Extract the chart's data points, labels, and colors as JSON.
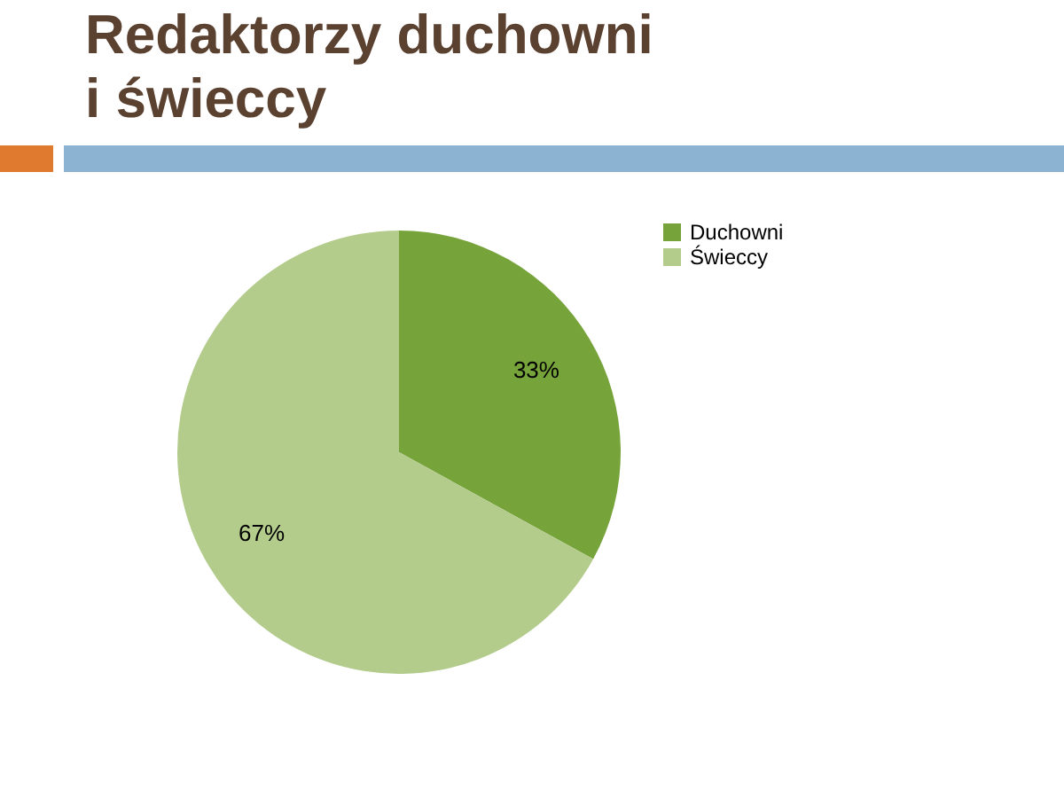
{
  "chart_data": {
    "type": "pie",
    "title": "Redaktorzy duchowni i świeccy",
    "categories": [
      "Duchowni",
      "Świeccy"
    ],
    "values": [
      33,
      67
    ],
    "colors": [
      "#77a33b",
      "#b3cc8c"
    ],
    "value_labels": [
      "33%",
      "67%"
    ],
    "legend": "right"
  }
}
